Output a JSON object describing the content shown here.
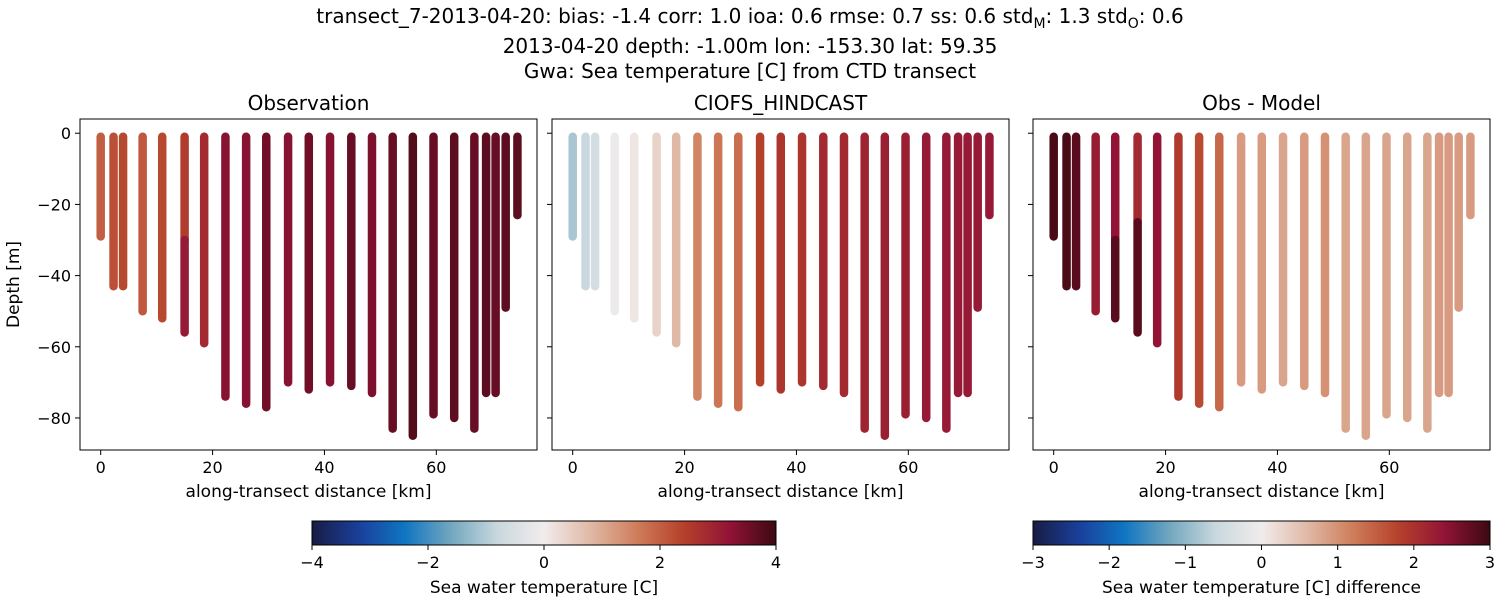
{
  "header": {
    "title_prefix": "transect_7-2013-04-20: bias: -1.4  corr: 1.0  ioa: 0.6  rmse: 0.7  ss: 0.6  std",
    "title_sub_m": "M",
    "title_mid": ": 1.3  std",
    "title_sub_o": "O",
    "title_suffix": ": 0.6",
    "line2": "2013-04-20 depth: -1.00m lon: -153.30 lat: 59.35",
    "line3": "Gwa: Sea temperature [C] from CTD transect"
  },
  "chart_data": [
    {
      "type": "scatter",
      "title": "Observation",
      "xlabel": "along-transect distance [km]",
      "ylabel": "Depth [m]",
      "xlim": [
        -3.7,
        78.0
      ],
      "ylim": [
        -89.0,
        4.0
      ],
      "xticks": [
        0,
        20,
        40,
        60
      ],
      "yticks": [
        0,
        -20,
        -40,
        -60,
        -80
      ],
      "colorbar": "temp",
      "profiles": [
        {
          "x": 0.0,
          "min_depth": -29,
          "segments": [
            {
              "to": -29,
              "value": 2.0
            }
          ]
        },
        {
          "x": 2.3,
          "min_depth": -43,
          "segments": [
            {
              "to": -43,
              "value": 2.2
            }
          ]
        },
        {
          "x": 4.0,
          "min_depth": -43,
          "segments": [
            {
              "to": -43,
              "value": 2.3
            }
          ]
        },
        {
          "x": 7.5,
          "min_depth": -50,
          "segments": [
            {
              "to": -50,
              "value": 2.1
            }
          ]
        },
        {
          "x": 11.0,
          "min_depth": -52,
          "segments": [
            {
              "to": -52,
              "value": 2.3
            }
          ]
        },
        {
          "x": 15.0,
          "min_depth": -56,
          "segments": [
            {
              "to": -30,
              "value": 2.5
            },
            {
              "to": -56,
              "value": 3.1
            }
          ]
        },
        {
          "x": 18.5,
          "min_depth": -59,
          "segments": [
            {
              "to": -59,
              "value": 2.8
            }
          ]
        },
        {
          "x": 22.3,
          "min_depth": -74,
          "segments": [
            {
              "to": -74,
              "value": 3.3
            }
          ]
        },
        {
          "x": 26.0,
          "min_depth": -76,
          "segments": [
            {
              "to": -76,
              "value": 3.3
            }
          ]
        },
        {
          "x": 29.6,
          "min_depth": -77,
          "segments": [
            {
              "to": -77,
              "value": 3.5
            }
          ]
        },
        {
          "x": 33.5,
          "min_depth": -70,
          "segments": [
            {
              "to": -70,
              "value": 3.3
            }
          ]
        },
        {
          "x": 37.2,
          "min_depth": -72,
          "segments": [
            {
              "to": -72,
              "value": 3.5
            }
          ]
        },
        {
          "x": 41.0,
          "min_depth": -70,
          "segments": [
            {
              "to": -70,
              "value": 3.3
            }
          ]
        },
        {
          "x": 44.8,
          "min_depth": -71,
          "segments": [
            {
              "to": -71,
              "value": 3.6
            }
          ]
        },
        {
          "x": 48.5,
          "min_depth": -73,
          "segments": [
            {
              "to": -73,
              "value": 3.4
            }
          ]
        },
        {
          "x": 52.2,
          "min_depth": -83,
          "segments": [
            {
              "to": -83,
              "value": 3.6
            }
          ]
        },
        {
          "x": 55.8,
          "min_depth": -85,
          "segments": [
            {
              "to": -85,
              "value": 3.8
            }
          ]
        },
        {
          "x": 59.5,
          "min_depth": -79,
          "segments": [
            {
              "to": -79,
              "value": 3.6
            }
          ]
        },
        {
          "x": 63.2,
          "min_depth": -80,
          "segments": [
            {
              "to": -80,
              "value": 3.7
            }
          ]
        },
        {
          "x": 66.8,
          "min_depth": -83,
          "segments": [
            {
              "to": -83,
              "value": 3.6
            }
          ]
        },
        {
          "x": 68.9,
          "min_depth": -73,
          "segments": [
            {
              "to": -73,
              "value": 3.7
            }
          ]
        },
        {
          "x": 70.6,
          "min_depth": -73,
          "segments": [
            {
              "to": -73,
              "value": 3.6
            }
          ]
        },
        {
          "x": 72.4,
          "min_depth": -49,
          "segments": [
            {
              "to": -49,
              "value": 3.7
            }
          ]
        },
        {
          "x": 74.5,
          "min_depth": -23,
          "segments": [
            {
              "to": -23,
              "value": 3.7
            }
          ]
        }
      ]
    },
    {
      "type": "scatter",
      "title": "CIOFS_HINDCAST",
      "xlabel": "along-transect distance [km]",
      "xlim": [
        -3.7,
        78.0
      ],
      "ylim": [
        -89.0,
        4.0
      ],
      "xticks": [
        0,
        20,
        40,
        60
      ],
      "yticks": [
        0,
        -20,
        -40,
        -60,
        -80
      ],
      "colorbar": "temp",
      "profiles": [
        {
          "x": 0.0,
          "min_depth": -29,
          "segments": [
            {
              "to": -29,
              "value": -1.1
            }
          ]
        },
        {
          "x": 2.3,
          "min_depth": -43,
          "segments": [
            {
              "to": -43,
              "value": -0.8
            }
          ]
        },
        {
          "x": 4.0,
          "min_depth": -43,
          "segments": [
            {
              "to": -43,
              "value": -0.6
            }
          ]
        },
        {
          "x": 7.5,
          "min_depth": -50,
          "segments": [
            {
              "to": -50,
              "value": -0.1
            }
          ]
        },
        {
          "x": 11.0,
          "min_depth": -52,
          "segments": [
            {
              "to": -52,
              "value": 0.1
            }
          ]
        },
        {
          "x": 15.0,
          "min_depth": -56,
          "segments": [
            {
              "to": -56,
              "value": 0.4
            }
          ]
        },
        {
          "x": 18.5,
          "min_depth": -59,
          "segments": [
            {
              "to": -59,
              "value": 0.8
            }
          ]
        },
        {
          "x": 22.3,
          "min_depth": -74,
          "segments": [
            {
              "to": -74,
              "value": 1.5
            }
          ]
        },
        {
          "x": 26.0,
          "min_depth": -76,
          "segments": [
            {
              "to": -76,
              "value": 1.7
            }
          ]
        },
        {
          "x": 29.6,
          "min_depth": -77,
          "segments": [
            {
              "to": -77,
              "value": 1.8
            }
          ]
        },
        {
          "x": 33.5,
          "min_depth": -70,
          "segments": [
            {
              "to": -70,
              "value": 2.4
            }
          ]
        },
        {
          "x": 37.2,
          "min_depth": -72,
          "segments": [
            {
              "to": -72,
              "value": 2.6
            }
          ]
        },
        {
          "x": 41.0,
          "min_depth": -70,
          "segments": [
            {
              "to": -70,
              "value": 2.6
            }
          ]
        },
        {
          "x": 44.8,
          "min_depth": -71,
          "segments": [
            {
              "to": -71,
              "value": 2.8
            }
          ]
        },
        {
          "x": 48.5,
          "min_depth": -73,
          "segments": [
            {
              "to": -73,
              "value": 2.8
            }
          ]
        },
        {
          "x": 52.2,
          "min_depth": -83,
          "segments": [
            {
              "to": -83,
              "value": 2.9
            }
          ]
        },
        {
          "x": 55.8,
          "min_depth": -85,
          "segments": [
            {
              "to": -85,
              "value": 3.0
            }
          ]
        },
        {
          "x": 59.5,
          "min_depth": -79,
          "segments": [
            {
              "to": -79,
              "value": 3.0
            }
          ]
        },
        {
          "x": 63.2,
          "min_depth": -80,
          "segments": [
            {
              "to": -80,
              "value": 3.1
            }
          ]
        },
        {
          "x": 66.8,
          "min_depth": -83,
          "segments": [
            {
              "to": -83,
              "value": 3.1
            }
          ]
        },
        {
          "x": 68.9,
          "min_depth": -73,
          "segments": [
            {
              "to": -73,
              "value": 3.1
            }
          ]
        },
        {
          "x": 70.6,
          "min_depth": -73,
          "segments": [
            {
              "to": -73,
              "value": 3.1
            }
          ]
        },
        {
          "x": 72.4,
          "min_depth": -49,
          "segments": [
            {
              "to": -49,
              "value": 3.1
            }
          ]
        },
        {
          "x": 74.5,
          "min_depth": -23,
          "segments": [
            {
              "to": -23,
              "value": 3.1
            }
          ]
        }
      ]
    },
    {
      "type": "scatter",
      "title": "Obs - Model",
      "xlabel": "along-transect distance [km]",
      "xlim": [
        -3.7,
        78.0
      ],
      "ylim": [
        -89.0,
        4.0
      ],
      "xticks": [
        0,
        20,
        40,
        60
      ],
      "yticks": [
        0,
        -20,
        -40,
        -60,
        -80
      ],
      "colorbar": "diff",
      "profiles": [
        {
          "x": 0.0,
          "min_depth": -29,
          "segments": [
            {
              "to": -29,
              "value": 2.9
            }
          ]
        },
        {
          "x": 2.3,
          "min_depth": -43,
          "segments": [
            {
              "to": -43,
              "value": 2.9
            }
          ]
        },
        {
          "x": 4.0,
          "min_depth": -43,
          "segments": [
            {
              "to": -43,
              "value": 2.8
            }
          ]
        },
        {
          "x": 7.5,
          "min_depth": -50,
          "segments": [
            {
              "to": -50,
              "value": 2.3
            }
          ]
        },
        {
          "x": 11.0,
          "min_depth": -52,
          "segments": [
            {
              "to": -30,
              "value": 2.4
            },
            {
              "to": -52,
              "value": 2.8
            }
          ]
        },
        {
          "x": 15.0,
          "min_depth": -56,
          "segments": [
            {
              "to": -25,
              "value": 2.1
            },
            {
              "to": -56,
              "value": 2.8
            }
          ]
        },
        {
          "x": 18.5,
          "min_depth": -59,
          "segments": [
            {
              "to": -59,
              "value": 2.4
            }
          ]
        },
        {
          "x": 22.3,
          "min_depth": -74,
          "segments": [
            {
              "to": -74,
              "value": 1.9
            }
          ]
        },
        {
          "x": 26.0,
          "min_depth": -76,
          "segments": [
            {
              "to": -76,
              "value": 1.7
            }
          ]
        },
        {
          "x": 29.6,
          "min_depth": -77,
          "segments": [
            {
              "to": -77,
              "value": 1.4
            }
          ]
        },
        {
          "x": 33.5,
          "min_depth": -70,
          "segments": [
            {
              "to": -70,
              "value": 0.9
            }
          ]
        },
        {
          "x": 37.2,
          "min_depth": -72,
          "segments": [
            {
              "to": -72,
              "value": 0.9
            }
          ]
        },
        {
          "x": 41.0,
          "min_depth": -70,
          "segments": [
            {
              "to": -70,
              "value": 0.8
            }
          ]
        },
        {
          "x": 44.8,
          "min_depth": -71,
          "segments": [
            {
              "to": -71,
              "value": 0.9
            }
          ]
        },
        {
          "x": 48.5,
          "min_depth": -73,
          "segments": [
            {
              "to": -73,
              "value": 1.0
            }
          ]
        },
        {
          "x": 52.2,
          "min_depth": -83,
          "segments": [
            {
              "to": -83,
              "value": 0.8
            }
          ]
        },
        {
          "x": 55.8,
          "min_depth": -85,
          "segments": [
            {
              "to": -85,
              "value": 0.8
            }
          ]
        },
        {
          "x": 59.5,
          "min_depth": -79,
          "segments": [
            {
              "to": -79,
              "value": 0.8
            }
          ]
        },
        {
          "x": 63.2,
          "min_depth": -80,
          "segments": [
            {
              "to": -80,
              "value": 0.8
            }
          ]
        },
        {
          "x": 66.8,
          "min_depth": -83,
          "segments": [
            {
              "to": -83,
              "value": 0.8
            }
          ]
        },
        {
          "x": 68.9,
          "min_depth": -73,
          "segments": [
            {
              "to": -73,
              "value": 0.9
            }
          ]
        },
        {
          "x": 70.6,
          "min_depth": -73,
          "segments": [
            {
              "to": -73,
              "value": 0.9
            }
          ]
        },
        {
          "x": 72.4,
          "min_depth": -49,
          "segments": [
            {
              "to": -49,
              "value": 0.9
            }
          ]
        },
        {
          "x": 74.5,
          "min_depth": -23,
          "segments": [
            {
              "to": -23,
              "value": 0.9
            }
          ]
        }
      ]
    }
  ],
  "colorbars": {
    "temp": {
      "label": "Sea water temperature [C]",
      "vmin": -4,
      "vmax": 4,
      "ticks": [
        -4,
        -2,
        0,
        2,
        4
      ],
      "tick_labels": [
        "−4",
        "−2",
        "0",
        "2",
        "4"
      ]
    },
    "diff": {
      "label": "Sea water temperature [C] difference",
      "vmin": -3,
      "vmax": 3,
      "ticks": [
        -3,
        -2,
        -1,
        0,
        1,
        2,
        3
      ],
      "tick_labels": [
        "−3",
        "−2",
        "−1",
        "0",
        "1",
        "2",
        "3"
      ]
    }
  },
  "colormap": {
    "name": "balance",
    "stops": [
      "#181c43",
      "#1a3f9a",
      "#0f75c2",
      "#73a7be",
      "#c9d8de",
      "#f1ecec",
      "#e0b9a6",
      "#cf7d5b",
      "#b5412b",
      "#921336",
      "#3c0911"
    ]
  }
}
